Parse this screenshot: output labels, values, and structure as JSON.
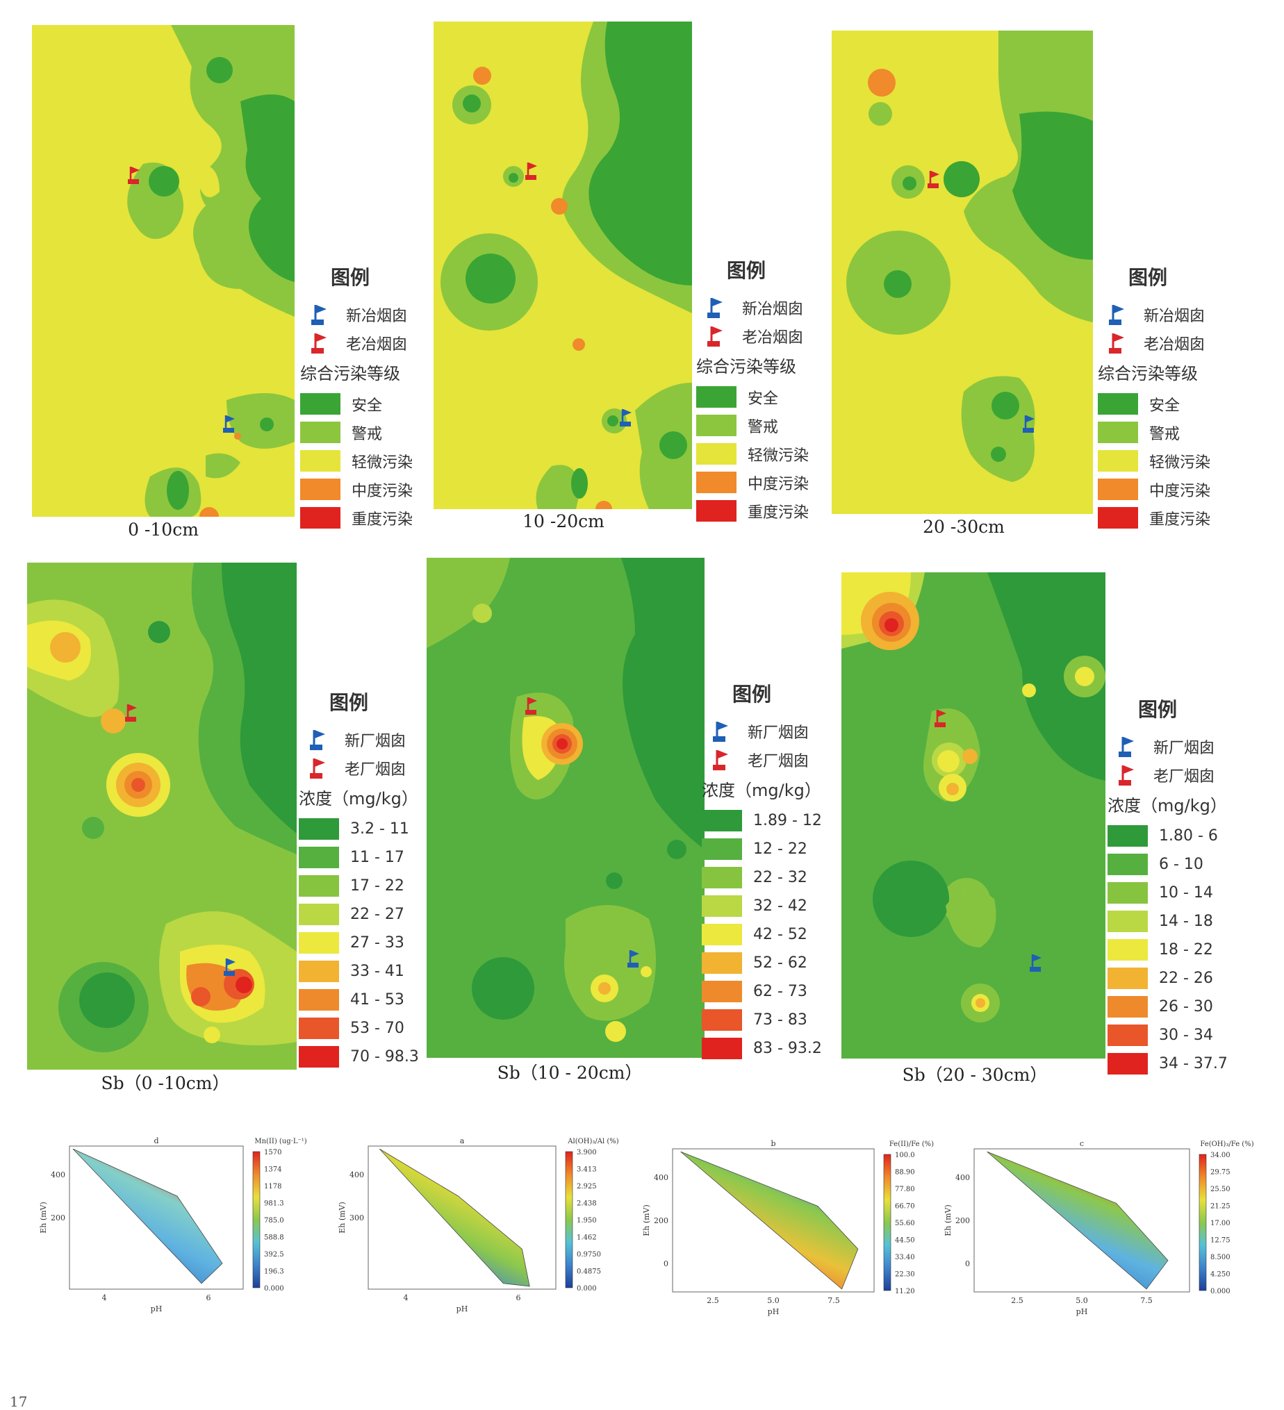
{
  "colors": {
    "safe": "#3aa535",
    "alert": "#8cc63e",
    "light": "#e4e43a",
    "moderate": "#f08a2a",
    "heavy": "#e0231f",
    "flag_blue": "#1f5fb5",
    "flag_red": "#d9262b"
  },
  "row1": {
    "legend_title": "图例",
    "flag_new": "新冶烟囱",
    "flag_old": "老冶烟囱",
    "levels_title": "综合污染等级",
    "levels": [
      "安全",
      "警戒",
      "轻微污染",
      "中度污染",
      "重度污染"
    ],
    "captions": [
      "0 -10cm",
      "10 -20cm",
      "20 -30cm"
    ]
  },
  "row2": {
    "legend_title": "图例",
    "flag_new": "新厂烟囱",
    "flag_old": "老厂烟囱",
    "unit_title": "浓度（mg/kg）",
    "ramp": [
      "#2f9a3a",
      "#55b040",
      "#86c440",
      "#b9d844",
      "#ece83e",
      "#f2b232",
      "#ee8a2c",
      "#e9562a",
      "#e0231f"
    ],
    "maps": [
      {
        "caption": "Sb（0 -10cm）",
        "classes": [
          "3.2 - 11",
          "11 - 17",
          "17 - 22",
          "22 - 27",
          "27 - 33",
          "33 - 41",
          "41 - 53",
          "53 - 70",
          "70 - 98.3"
        ]
      },
      {
        "caption": "Sb（10 - 20cm）",
        "classes": [
          "1.89 - 12",
          "12 - 22",
          "22 - 32",
          "32 - 42",
          "42 - 52",
          "52 - 62",
          "62 - 73",
          "73 - 83",
          "83 - 93.2"
        ]
      },
      {
        "caption": "Sb（20 - 30cm）",
        "classes": [
          "1.80 - 6",
          "6 - 10",
          "10 - 14",
          "14 - 18",
          "18 - 22",
          "22 - 26",
          "26 - 30",
          "30 - 34",
          "34 - 37.7"
        ]
      }
    ]
  },
  "row3": {
    "ylabel": "Eh (mV)",
    "xlabel": "pH",
    "charts": [
      {
        "title": "d",
        "colorbar_label": "Mn(II) (ug·L⁻¹)",
        "ticks": [
          "1570",
          "1374",
          "1178",
          "981.3",
          "785.0",
          "588.8",
          "392.5",
          "196.3",
          "0.000"
        ],
        "yticks": [
          "400",
          "200"
        ],
        "xticks": [
          "4",
          "6"
        ]
      },
      {
        "title": "a",
        "colorbar_label": "Al(OH)₃/Al (%)",
        "ticks": [
          "3.900",
          "3.413",
          "2.925",
          "2.438",
          "1.950",
          "1.462",
          "0.9750",
          "0.4875",
          "0.000"
        ],
        "yticks": [
          "400",
          "300"
        ],
        "xticks": [
          "4",
          "6"
        ]
      },
      {
        "title": "b",
        "colorbar_label": "Fe(II)/Fe (%)",
        "ticks": [
          "100.0",
          "88.90",
          "77.80",
          "66.70",
          "55.60",
          "44.50",
          "33.40",
          "22.30",
          "11.20"
        ],
        "yticks": [
          "400",
          "200",
          "0"
        ],
        "xticks": [
          "2.5",
          "5.0",
          "7.5"
        ]
      },
      {
        "title": "c",
        "colorbar_label": "Fe(OH)₃/Fe (%)",
        "ticks": [
          "34.00",
          "29.75",
          "25.50",
          "21.25",
          "17.00",
          "12.75",
          "8.500",
          "4.250",
          "0.000"
        ],
        "yticks": [
          "400",
          "200",
          "0"
        ],
        "xticks": [
          "2.5",
          "5.0",
          "7.5"
        ]
      }
    ]
  },
  "page_number": "17"
}
